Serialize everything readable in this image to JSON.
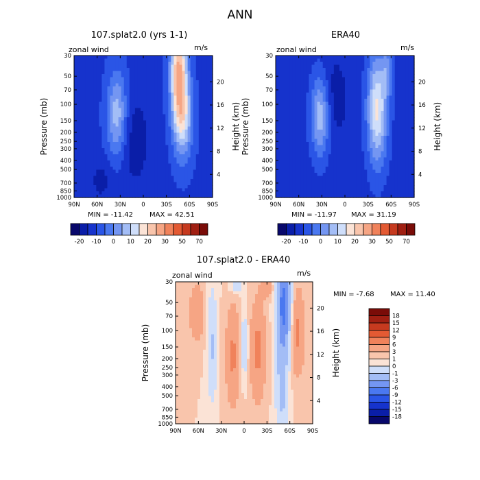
{
  "page_title": "ANN",
  "chart_data": [
    {
      "type": "heatmap",
      "title": "107.splat2.0 (yrs 1-1)",
      "field_label": "zonal wind",
      "units": "m/s",
      "ylabel": "Pressure (mb)",
      "y2label": "Height (km)",
      "x_ticks": [
        "90N",
        "60N",
        "30N",
        "0",
        "30S",
        "60S",
        "90S"
      ],
      "y_ticks": [
        "30",
        "50",
        "70",
        "100",
        "150",
        "200",
        "250",
        "300",
        "400",
        "500",
        "700",
        "850",
        "1000"
      ],
      "y2_ticks": [
        "20",
        "16",
        "12",
        "8",
        "4"
      ],
      "min_text": "MIN = -11.42",
      "max_text": "MAX = 42.51",
      "colorbar_ticks": [
        "-20",
        "-10",
        "0",
        "10",
        "20",
        "30",
        "50",
        "70"
      ]
    },
    {
      "type": "heatmap",
      "title": "ERA40",
      "field_label": "zonal wind",
      "units": "m/s",
      "ylabel": "Pressure (mb)",
      "y2label": "Height (km)",
      "x_ticks": [
        "90N",
        "60N",
        "30N",
        "0",
        "30S",
        "60S",
        "90S"
      ],
      "y_ticks": [
        "30",
        "50",
        "70",
        "100",
        "150",
        "200",
        "250",
        "300",
        "400",
        "500",
        "700",
        "850",
        "1000"
      ],
      "y2_ticks": [
        "20",
        "16",
        "12",
        "8",
        "4"
      ],
      "min_text": "MIN = -11.97",
      "max_text": "MAX = 31.19",
      "colorbar_ticks": [
        "-20",
        "-10",
        "0",
        "10",
        "20",
        "30",
        "50",
        "70"
      ]
    },
    {
      "type": "heatmap",
      "title": "107.splat2.0 - ERA40",
      "field_label": "zonal wind",
      "units": "m/s",
      "ylabel": "Pressure (mb)",
      "y2label": "Height (km)",
      "x_ticks": [
        "90N",
        "60N",
        "30N",
        "0",
        "30S",
        "60S",
        "90S"
      ],
      "y_ticks": [
        "30",
        "50",
        "70",
        "100",
        "150",
        "200",
        "250",
        "300",
        "400",
        "500",
        "700",
        "850",
        "1000"
      ],
      "y2_ticks": [
        "20",
        "16",
        "12",
        "8",
        "4"
      ],
      "min_text": "MIN = -7.68",
      "max_text": "MAX = 11.40",
      "colorbar_ticks": [
        "18",
        "15",
        "12",
        "9",
        "6",
        "3",
        "1",
        "0",
        "-1",
        "-3",
        "-6",
        "-9",
        "-12",
        "-15",
        "-18"
      ]
    }
  ],
  "colors": {
    "diverging": [
      "#08086b",
      "#0a1ea8",
      "#1633cc",
      "#2a55e6",
      "#4a78f0",
      "#7496f2",
      "#a3bdf6",
      "#cfdefa",
      "#fbe3d6",
      "#f9c5ac",
      "#f6a584",
      "#f0825b",
      "#e35a33",
      "#c63a1f",
      "#a01f12",
      "#7a0c08"
    ],
    "diff": [
      "#7a0c08",
      "#a01f12",
      "#c63a1f",
      "#e35a33",
      "#f0825b",
      "#f6a584",
      "#f9c5ac",
      "#fbe3d6",
      "#cfdefa",
      "#a3bdf6",
      "#7496f2",
      "#4a78f0",
      "#2a55e6",
      "#1633cc",
      "#0a1ea8",
      "#08086b"
    ]
  }
}
